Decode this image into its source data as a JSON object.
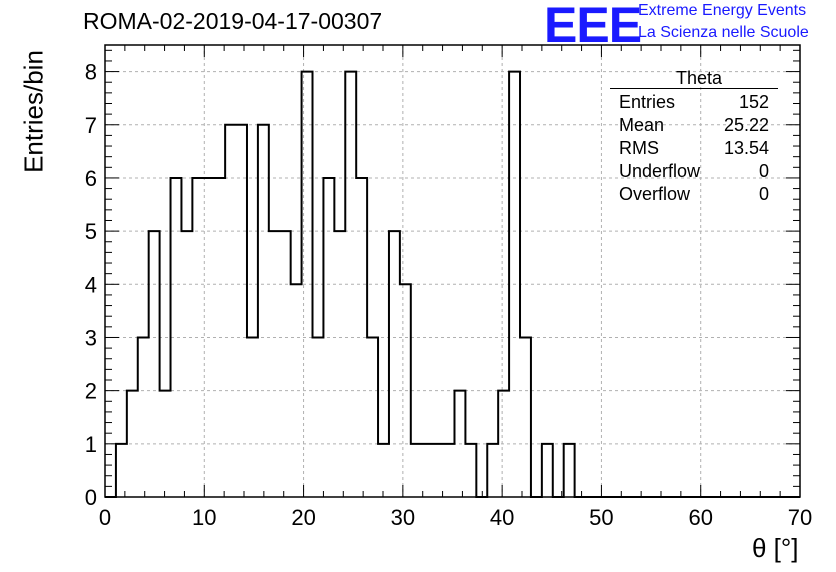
{
  "title": "ROMA-02-2019-04-17-00307",
  "logo": {
    "mark": "EEE",
    "line1": "Extreme Energy Events",
    "line2": "La Scienza nelle Scuole",
    "color": "#1a1aff"
  },
  "stats_box": {
    "title": "Theta",
    "rows": [
      {
        "label": "Entries",
        "value": "152"
      },
      {
        "label": "Mean",
        "value": "25.22"
      },
      {
        "label": "RMS",
        "value": "13.54"
      },
      {
        "label": "Underflow",
        "value": "0"
      },
      {
        "label": "Overflow",
        "value": "0"
      }
    ]
  },
  "chart_data": {
    "type": "bar",
    "histogram": true,
    "title": "ROMA-02-2019-04-17-00307",
    "xlabel": "θ [°]",
    "ylabel": "Entries/bin",
    "xlim": [
      0,
      70
    ],
    "ylim": [
      0,
      8.5
    ],
    "bin_width": 1.1,
    "bin_start": 0,
    "values": [
      0,
      1,
      2,
      3,
      5,
      2,
      6,
      5,
      6,
      6,
      6,
      7,
      7,
      3,
      7,
      5,
      5,
      4,
      8,
      3,
      6,
      5,
      8,
      6,
      3,
      1,
      5,
      4,
      1,
      1,
      1,
      1,
      2,
      1,
      0,
      1,
      2,
      8,
      3,
      0,
      1,
      0,
      1,
      0,
      0,
      0,
      0,
      0,
      0,
      0,
      0,
      0,
      0,
      0,
      0,
      0,
      0,
      0,
      0,
      0,
      0,
      0,
      0,
      0
    ],
    "xticks": [
      0,
      10,
      20,
      30,
      40,
      50,
      60,
      70
    ],
    "yticks": [
      0,
      1,
      2,
      3,
      4,
      5,
      6,
      7,
      8
    ],
    "grid": true,
    "line_color": "#000000",
    "grid_color": "#b0b0b0"
  }
}
